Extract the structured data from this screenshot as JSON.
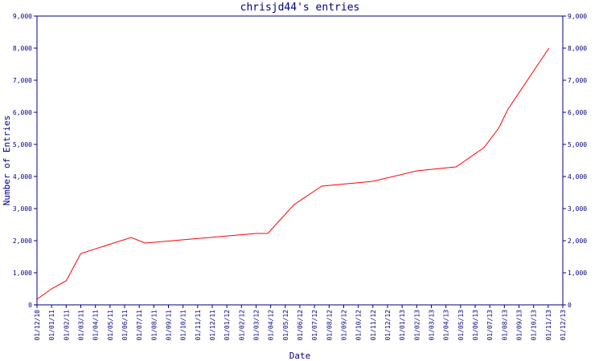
{
  "chart_data": {
    "type": "line",
    "title": "chrisjd44's entries",
    "x_label": "Date",
    "y_label": "Number of Entries",
    "x": [
      0,
      1,
      2,
      3,
      6.45,
      7.4,
      15,
      15.8,
      17.6,
      19.5,
      23,
      26,
      28.7,
      30.6,
      31.6,
      32.25,
      35.05
    ],
    "series": [
      {
        "name": "entries",
        "color": "#ff0000",
        "values": [
          175,
          500,
          750,
          1600,
          2100,
          1925,
          2225,
          2225,
          3125,
          3700,
          3850,
          4175,
          4300,
          4900,
          5500,
          6100,
          8000
        ]
      }
    ],
    "xlim": [
      0,
      36
    ],
    "xticks": [
      {
        "value": 0,
        "label": "01/12/10"
      },
      {
        "value": 1,
        "label": "01/01/11"
      },
      {
        "value": 2,
        "label": "01/02/11"
      },
      {
        "value": 3,
        "label": "01/03/11"
      },
      {
        "value": 4,
        "label": "01/04/11"
      },
      {
        "value": 5,
        "label": "01/05/11"
      },
      {
        "value": 6,
        "label": "01/06/11"
      },
      {
        "value": 7,
        "label": "01/07/11"
      },
      {
        "value": 8,
        "label": "01/08/11"
      },
      {
        "value": 9,
        "label": "01/09/11"
      },
      {
        "value": 10,
        "label": "01/10/11"
      },
      {
        "value": 11,
        "label": "01/11/11"
      },
      {
        "value": 12,
        "label": "01/12/11"
      },
      {
        "value": 13,
        "label": "01/01/12"
      },
      {
        "value": 14,
        "label": "01/02/12"
      },
      {
        "value": 15,
        "label": "01/03/12"
      },
      {
        "value": 16,
        "label": "01/04/12"
      },
      {
        "value": 17,
        "label": "01/05/12"
      },
      {
        "value": 18,
        "label": "01/06/12"
      },
      {
        "value": 19,
        "label": "01/07/12"
      },
      {
        "value": 20,
        "label": "01/08/12"
      },
      {
        "value": 21,
        "label": "01/09/12"
      },
      {
        "value": 22,
        "label": "01/10/12"
      },
      {
        "value": 23,
        "label": "01/11/12"
      },
      {
        "value": 24,
        "label": "01/12/12"
      },
      {
        "value": 25,
        "label": "01/01/13"
      },
      {
        "value": 26,
        "label": "01/02/13"
      },
      {
        "value": 27,
        "label": "01/03/13"
      },
      {
        "value": 28,
        "label": "01/04/13"
      },
      {
        "value": 29,
        "label": "01/05/13"
      },
      {
        "value": 30,
        "label": "01/06/13"
      },
      {
        "value": 31,
        "label": "01/07/13"
      },
      {
        "value": 32,
        "label": "01/08/13"
      },
      {
        "value": 33,
        "label": "01/09/13"
      },
      {
        "value": 34,
        "label": "01/10/13"
      },
      {
        "value": 35,
        "label": "01/11/13"
      },
      {
        "value": 36,
        "label": "01/12/13"
      }
    ],
    "ylim": [
      0,
      9000
    ],
    "yticks": [
      0,
      {
        "value": 1000,
        "label": "1,000"
      },
      {
        "value": 2000,
        "label": "2,000"
      },
      {
        "value": 3000,
        "label": "3,000"
      },
      {
        "value": 4000,
        "label": "4,000"
      },
      {
        "value": 5000,
        "label": "5,000"
      },
      {
        "value": 6000,
        "label": "6,000"
      },
      {
        "value": 7000,
        "label": "7,000"
      },
      {
        "value": 8000,
        "label": "8,000"
      },
      {
        "value": 9000,
        "label": "9,000"
      }
    ],
    "y2lim": [
      0,
      9000
    ],
    "y2ticks": [
      0,
      {
        "value": 1000,
        "label": "1,000"
      },
      {
        "value": 2000,
        "label": "2,000"
      },
      {
        "value": 3000,
        "label": "3,000"
      },
      {
        "value": 4000,
        "label": "4,000"
      },
      {
        "value": 5000,
        "label": "5,000"
      },
      {
        "value": 6000,
        "label": "6,000"
      },
      {
        "value": 7000,
        "label": "7,000"
      },
      {
        "value": 8000,
        "label": "8,000"
      },
      {
        "value": 9000,
        "label": "9,000"
      }
    ]
  }
}
